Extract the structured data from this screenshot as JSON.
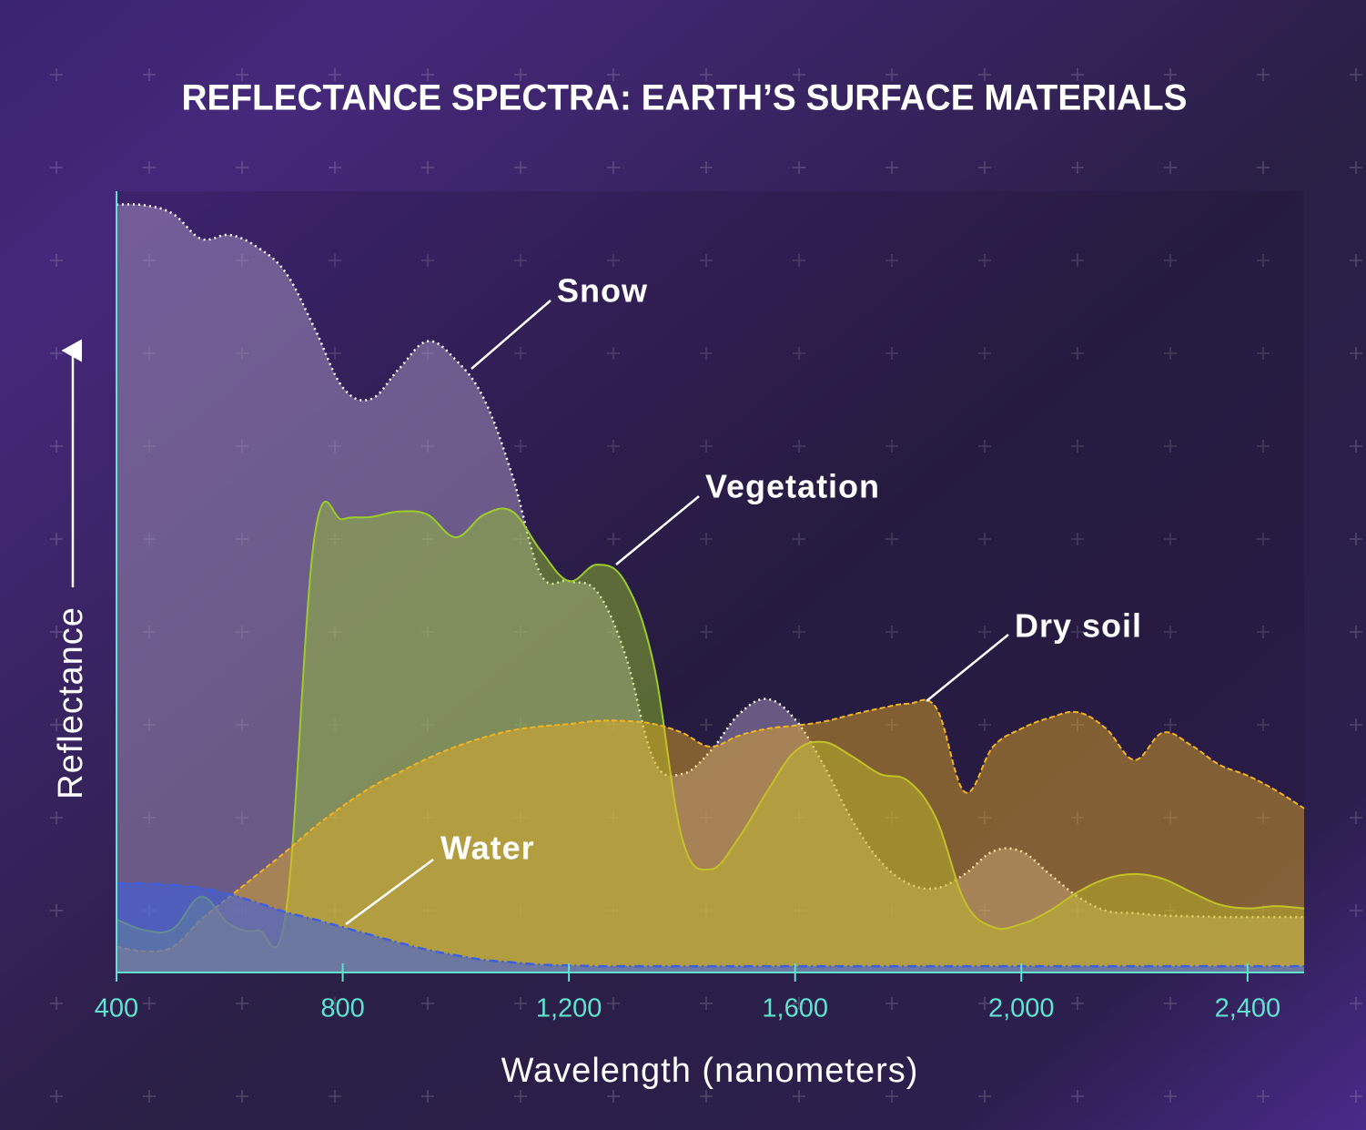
{
  "chart_data": {
    "type": "area",
    "title": "REFLECTANCE SPECTRA: EARTH’S SURFACE MATERIALS",
    "x_label": "Wavelength (nanometers)",
    "y_label": "Reflectance",
    "xlim": [
      400,
      2500
    ],
    "ylim": [
      0,
      100
    ],
    "xticks": [
      400,
      800,
      {
        "value": 1200,
        "label": "1,200"
      },
      {
        "value": 1600,
        "label": "1,600"
      },
      {
        "value": 2000,
        "label": "2,000"
      },
      {
        "value": 2400,
        "label": "2,400"
      }
    ],
    "x": [
      400,
      450,
      500,
      550,
      600,
      650,
      700,
      750,
      800,
      850,
      900,
      950,
      1000,
      1050,
      1100,
      1150,
      1200,
      1250,
      1300,
      1350,
      1400,
      1450,
      1500,
      1550,
      1600,
      1650,
      1700,
      1750,
      1800,
      1850,
      1900,
      1950,
      2000,
      2050,
      2100,
      2150,
      2200,
      2250,
      2300,
      2350,
      2400,
      2450,
      2500
    ],
    "series": [
      {
        "name": "Snow",
        "color": "#b9a6d0",
        "values": [
          98.3,
          98.2,
          97.1,
          93.9,
          94.4,
          92.8,
          89.5,
          82.5,
          74.9,
          73.4,
          77.3,
          80.8,
          78.4,
          73.4,
          63.6,
          51.0,
          50.1,
          48.7,
          40.6,
          27.2,
          25.4,
          28.3,
          33.0,
          35.0,
          32.4,
          26.6,
          19.6,
          14.3,
          11.4,
          10.8,
          12.6,
          15.5,
          15.5,
          12.6,
          9.7,
          7.9,
          7.6,
          7.3,
          7.2,
          7.1,
          7.1,
          7.1,
          7.1
        ]
      },
      {
        "name": "Vegetation",
        "color": "#9ccc2a",
        "values": [
          6.8,
          5.4,
          5.6,
          9.7,
          6.2,
          5.4,
          7.9,
          55.7,
          58.0,
          58.3,
          59.0,
          58.6,
          55.7,
          58.6,
          59.0,
          54.0,
          50.1,
          52.2,
          49.9,
          39.4,
          17.2,
          13.2,
          17.2,
          23.1,
          28.3,
          29.5,
          27.7,
          25.4,
          24.5,
          19.6,
          9.1,
          5.8,
          6.2,
          7.9,
          10.3,
          12.0,
          12.6,
          12.0,
          10.3,
          8.7,
          8.2,
          8.5,
          8.2
        ]
      },
      {
        "name": "Dry soil",
        "color": "#f2b321",
        "values": [
          3.3,
          2.7,
          3.3,
          6.8,
          9.7,
          12.6,
          15.5,
          18.6,
          21.3,
          23.7,
          25.6,
          27.4,
          28.9,
          30.1,
          31.0,
          31.5,
          31.8,
          32.2,
          32.2,
          31.8,
          30.7,
          28.9,
          30.3,
          31.2,
          31.6,
          32.1,
          33.0,
          33.8,
          34.4,
          33.8,
          23.1,
          28.9,
          31.2,
          32.6,
          33.3,
          31.2,
          27.2,
          30.7,
          29.1,
          26.6,
          25.2,
          23.3,
          21.0
        ]
      },
      {
        "name": "Water",
        "color": "#3d5fe0",
        "values": [
          11.4,
          11.4,
          11.2,
          10.8,
          10.0,
          8.9,
          7.7,
          6.8,
          5.8,
          4.8,
          3.8,
          2.9,
          2.2,
          1.6,
          1.3,
          1.0,
          0.9,
          0.8,
          0.8,
          0.8,
          0.8,
          0.8,
          0.8,
          0.8,
          0.8,
          0.8,
          0.8,
          0.8,
          0.8,
          0.8,
          0.8,
          0.8,
          0.8,
          0.8,
          0.8,
          0.8,
          0.8,
          0.8,
          0.8,
          0.8,
          0.8,
          0.8,
          0.8
        ]
      }
    ]
  }
}
